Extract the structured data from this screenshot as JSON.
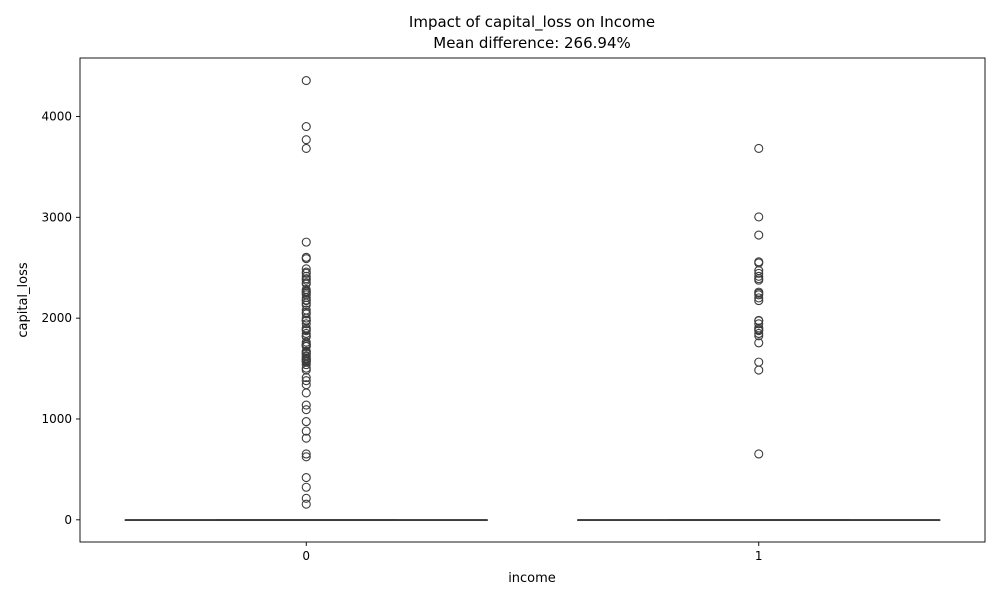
{
  "chart_data": {
    "type": "box",
    "title": "Impact of capital_loss on Income",
    "subtitle": "Mean difference: 266.94%",
    "xlabel": "income",
    "ylabel": "capital_loss",
    "categories": [
      "0",
      "1"
    ],
    "ylim": [
      -220,
      4580
    ],
    "yticks": [
      0,
      1000,
      2000,
      3000,
      4000
    ],
    "grid": false,
    "legend": "none",
    "colors": {
      "box_edge": "#3d3d3d",
      "outlier": "#3d3d3d",
      "axis": "#000000"
    },
    "boxes": [
      {
        "category": "0",
        "q1": 0,
        "median": 0,
        "q3": 0,
        "whisker_low": 0,
        "whisker_high": 0,
        "outliers": [
          4356,
          3900,
          3770,
          3683,
          2754,
          2603,
          2590,
          2489,
          2457,
          2444,
          2415,
          2392,
          2377,
          2352,
          2339,
          2285,
          2267,
          2258,
          2246,
          2231,
          2205,
          2179,
          2174,
          2149,
          2129,
          2080,
          2057,
          2042,
          2001,
          1980,
          1977,
          1974,
          1944,
          1902,
          1887,
          1876,
          1848,
          1825,
          1816,
          1762,
          1741,
          1740,
          1735,
          1721,
          1719,
          1672,
          1668,
          1651,
          1648,
          1628,
          1617,
          1602,
          1594,
          1590,
          1579,
          1573,
          1564,
          1539,
          1504,
          1485,
          1411,
          1380,
          1340,
          1258,
          1138,
          1092,
          974,
          880,
          810,
          653,
          625,
          419,
          323,
          213,
          155
        ]
      },
      {
        "category": "1",
        "q1": 0,
        "median": 0,
        "q3": 0,
        "whisker_low": 0,
        "whisker_high": 0,
        "outliers": [
          3683,
          3004,
          2824,
          2559,
          2547,
          2472,
          2444,
          2415,
          2392,
          2377,
          2258,
          2246,
          2231,
          2201,
          2174,
          1977,
          1974,
          1944,
          1902,
          1887,
          1876,
          1848,
          1825,
          1755,
          1564,
          1485,
          653
        ]
      }
    ]
  }
}
